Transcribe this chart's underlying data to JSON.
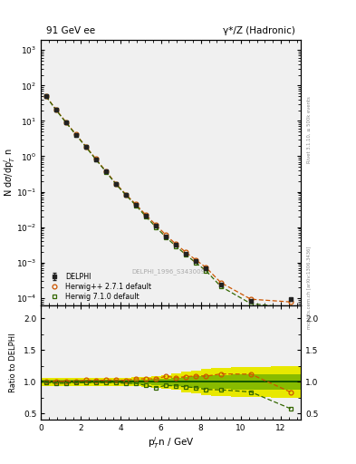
{
  "title_left": "91 GeV ee",
  "title_right": "γ*/Z (Hadronic)",
  "right_label_top": "Rivet 3.1.10, ≥ 500k events",
  "right_label_bot": "mcplots.cern.ch [arXiv:1306.3436]",
  "watermark": "DELPHI_1996_S3430090",
  "xlabel": "p$_T^i$n / GeV",
  "ylabel_main": "N dσ/dp$_T^i$ n",
  "ylabel_ratio": "Ratio to DELPHI",
  "delphi_x": [
    0.25,
    0.75,
    1.25,
    1.75,
    2.25,
    2.75,
    3.25,
    3.75,
    4.25,
    4.75,
    5.25,
    5.75,
    6.25,
    6.75,
    7.25,
    7.75,
    8.25,
    9.0,
    10.5,
    12.5
  ],
  "delphi_y": [
    50.0,
    21.0,
    9.2,
    4.1,
    1.85,
    0.82,
    0.37,
    0.165,
    0.082,
    0.042,
    0.021,
    0.011,
    0.0055,
    0.0031,
    0.0018,
    0.00108,
    0.00067,
    0.00024,
    8.2e-05,
    9.2e-05
  ],
  "delphi_yerr": [
    1.5,
    0.8,
    0.35,
    0.18,
    0.08,
    0.035,
    0.016,
    0.007,
    0.0035,
    0.0018,
    0.0009,
    0.0005,
    0.00025,
    0.00015,
    9e-05,
    5.5e-05,
    3.5e-05,
    1.3e-05,
    7e-06,
    9e-06
  ],
  "herwig_x": [
    0.25,
    0.75,
    1.25,
    1.75,
    2.25,
    2.75,
    3.25,
    3.75,
    4.25,
    4.75,
    5.25,
    5.75,
    6.25,
    6.75,
    7.25,
    7.75,
    8.25,
    9.0,
    10.5,
    12.5
  ],
  "herwig_y": [
    50.5,
    21.2,
    9.3,
    4.15,
    1.9,
    0.84,
    0.38,
    0.17,
    0.084,
    0.044,
    0.022,
    0.0115,
    0.006,
    0.0033,
    0.00195,
    0.00118,
    0.00073,
    0.00027,
    9.2e-05,
    7.7e-05
  ],
  "herwig7_x": [
    0.25,
    0.75,
    1.25,
    1.75,
    2.25,
    2.75,
    3.25,
    3.75,
    4.25,
    4.75,
    5.25,
    5.75,
    6.25,
    6.75,
    7.25,
    7.75,
    8.25,
    9.0,
    10.5,
    12.5
  ],
  "herwig7_y": [
    49.5,
    20.5,
    9.0,
    4.05,
    1.83,
    0.81,
    0.366,
    0.163,
    0.08,
    0.041,
    0.0198,
    0.01,
    0.0052,
    0.0029,
    0.00166,
    0.00098,
    0.00059,
    0.00021,
    6.9e-05,
    5.3e-05
  ],
  "ratio_herwig_y": [
    1.01,
    1.01,
    1.01,
    1.012,
    1.027,
    1.024,
    1.027,
    1.03,
    1.024,
    1.048,
    1.048,
    1.045,
    1.09,
    1.065,
    1.083,
    1.093,
    1.09,
    1.125,
    1.122,
    0.837
  ],
  "ratio_herwig7_y": [
    0.99,
    0.976,
    0.978,
    0.988,
    0.989,
    0.988,
    0.989,
    0.988,
    0.976,
    0.976,
    0.943,
    0.909,
    0.945,
    0.935,
    0.922,
    0.907,
    0.88,
    0.875,
    0.841,
    0.576
  ],
  "band_yellow_low": [
    0.94,
    0.94,
    0.94,
    0.94,
    0.94,
    0.94,
    0.94,
    0.94,
    0.94,
    0.93,
    0.92,
    0.91,
    0.89,
    0.87,
    0.84,
    0.82,
    0.79,
    0.78,
    0.76,
    0.75
  ],
  "band_yellow_high": [
    1.06,
    1.06,
    1.06,
    1.06,
    1.06,
    1.06,
    1.06,
    1.06,
    1.06,
    1.07,
    1.08,
    1.09,
    1.11,
    1.13,
    1.16,
    1.18,
    1.21,
    1.22,
    1.24,
    1.25
  ],
  "band_green_low": [
    0.97,
    0.97,
    0.97,
    0.97,
    0.97,
    0.97,
    0.97,
    0.97,
    0.97,
    0.965,
    0.96,
    0.955,
    0.945,
    0.935,
    0.92,
    0.91,
    0.895,
    0.89,
    0.88,
    0.875
  ],
  "band_green_high": [
    1.03,
    1.03,
    1.03,
    1.03,
    1.03,
    1.03,
    1.03,
    1.03,
    1.03,
    1.035,
    1.04,
    1.045,
    1.055,
    1.065,
    1.08,
    1.09,
    1.105,
    1.11,
    1.12,
    1.125
  ],
  "color_delphi": "#222222",
  "color_herwig": "#cc5500",
  "color_herwig7": "#336600",
  "color_band_yellow": "#e8e800",
  "color_band_green": "#88bb00",
  "bg_color": "#f0f0f0",
  "xlim": [
    0,
    13
  ],
  "ylim_main": [
    6e-05,
    2000
  ],
  "ylim_ratio": [
    0.4,
    2.2
  ],
  "ratio_yticks": [
    0.5,
    1.0,
    1.5,
    2.0
  ]
}
